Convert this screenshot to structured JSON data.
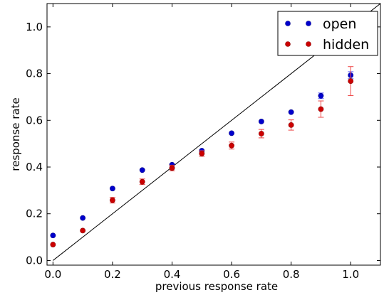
{
  "chart_data": {
    "type": "scatter",
    "xlabel": "previous response rate",
    "ylabel": "response rate",
    "xlim": [
      -0.02,
      1.1
    ],
    "ylim": [
      -0.02,
      1.1
    ],
    "xticks": [
      "0.0",
      "0.2",
      "0.4",
      "0.6",
      "0.8",
      "1.0"
    ],
    "xtick_values": [
      0.0,
      0.2,
      0.4,
      0.6,
      0.8,
      1.0
    ],
    "yticks": [
      "0.0",
      "0.2",
      "0.4",
      "0.6",
      "0.8",
      "1.0"
    ],
    "ytick_values": [
      0.0,
      0.2,
      0.4,
      0.6,
      0.8,
      1.0
    ],
    "grid": false,
    "legend_position": "top-right",
    "reference_line": {
      "x": [
        0,
        1.1
      ],
      "y": [
        0,
        1.1
      ],
      "color": "#000000"
    },
    "series": [
      {
        "name": "open",
        "color": "#0000cc",
        "x": [
          0.0,
          0.1,
          0.2,
          0.3,
          0.4,
          0.5,
          0.6,
          0.7,
          0.8,
          0.9,
          1.0
        ],
        "y": [
          0.107,
          0.182,
          0.308,
          0.387,
          0.41,
          0.47,
          0.545,
          0.595,
          0.635,
          0.705,
          0.793
        ],
        "err": [
          0.0,
          0.0,
          0.0,
          0.0,
          0.0,
          0.0,
          0.0,
          0.0,
          0.0,
          0.012,
          0.015
        ]
      },
      {
        "name": "hidden",
        "color": "#cc0000",
        "x": [
          0.0,
          0.1,
          0.2,
          0.3,
          0.4,
          0.5,
          0.6,
          0.7,
          0.8,
          0.9,
          1.0
        ],
        "y": [
          0.068,
          0.128,
          0.258,
          0.337,
          0.396,
          0.458,
          0.492,
          0.543,
          0.58,
          0.648,
          0.768
        ],
        "err": [
          0.0,
          0.0,
          0.012,
          0.012,
          0.012,
          0.012,
          0.015,
          0.018,
          0.022,
          0.035,
          0.062
        ]
      }
    ]
  }
}
